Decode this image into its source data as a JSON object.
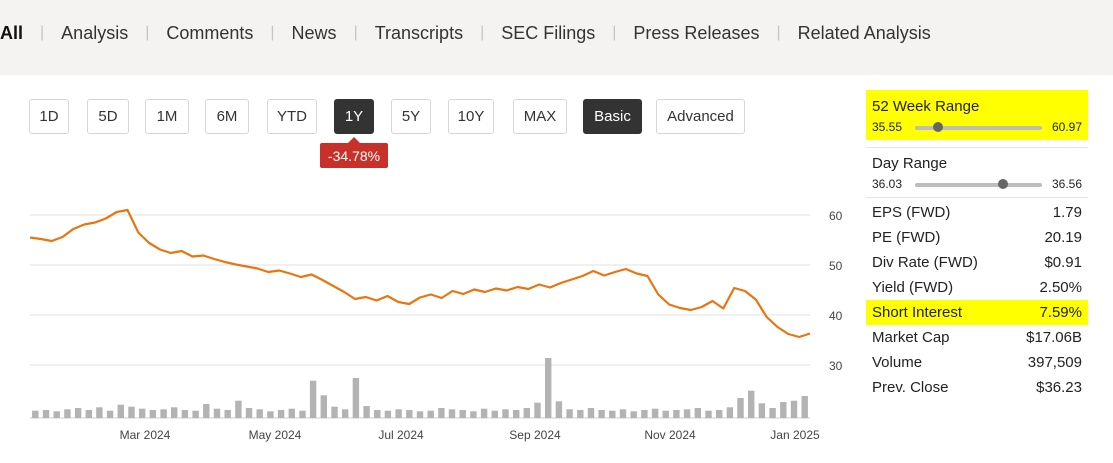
{
  "nav": {
    "tabs": [
      "All",
      "Analysis",
      "Comments",
      "News",
      "Transcripts",
      "SEC Filings",
      "Press Releases",
      "Related Analysis"
    ],
    "active": "All"
  },
  "range_buttons": [
    "1D",
    "5D",
    "1M",
    "6M",
    "YTD",
    "1Y",
    "5Y",
    "10Y",
    "MAX"
  ],
  "active_range": "1Y",
  "mode_buttons": [
    "Basic",
    "Advanced"
  ],
  "active_mode": "Basic",
  "change_pct": "-34.78%",
  "colors": {
    "line": "#e8750f",
    "badge": "#c8312a",
    "highlight": "#ffff00",
    "volume": "#b3b3b3"
  },
  "stats": {
    "week52": {
      "label": "52 Week Range",
      "low": "35.55",
      "high": "60.97",
      "position": 0.18
    },
    "day": {
      "label": "Day Range",
      "low": "36.03",
      "high": "36.56",
      "position": 0.69
    },
    "rows": [
      {
        "label": "EPS (FWD)",
        "value": "1.79"
      },
      {
        "label": "PE (FWD)",
        "value": "20.19"
      },
      {
        "label": "Div Rate (FWD)",
        "value": "$0.91"
      },
      {
        "label": "Yield (FWD)",
        "value": "2.50%"
      },
      {
        "label": "Short Interest",
        "value": "7.59%",
        "highlight": true
      },
      {
        "label": "Market Cap",
        "value": "$17.06B"
      },
      {
        "label": "Volume",
        "value": "397,509"
      },
      {
        "label": "Prev. Close",
        "value": "$36.23"
      }
    ]
  },
  "chart_data": {
    "type": "line",
    "x_ticks": [
      "Mar 2024",
      "May 2024",
      "Jul 2024",
      "Sep 2024",
      "Nov 2024",
      "Jan 2025"
    ],
    "y_ticks": [
      30,
      40,
      50,
      60
    ],
    "ylim": [
      27,
      67
    ],
    "grid": true,
    "price": [
      55.5,
      55.2,
      54.8,
      55.6,
      57.2,
      58.1,
      58.5,
      59.3,
      60.6,
      61.0,
      56.5,
      54.4,
      53.1,
      52.4,
      52.8,
      51.7,
      51.9,
      51.2,
      50.6,
      50.1,
      49.7,
      49.3,
      48.6,
      48.9,
      48.3,
      47.6,
      48.1,
      47.0,
      45.8,
      44.6,
      43.2,
      43.6,
      42.9,
      43.8,
      42.6,
      42.2,
      43.5,
      44.1,
      43.4,
      44.8,
      44.2,
      45.1,
      44.6,
      45.3,
      44.9,
      45.6,
      45.2,
      46.1,
      45.5,
      46.4,
      47.1,
      47.8,
      48.8,
      47.9,
      48.6,
      49.2,
      48.3,
      47.8,
      44.1,
      42.1,
      41.4,
      41.0,
      41.6,
      42.8,
      41.3,
      45.4,
      44.8,
      43.1,
      39.6,
      37.6,
      36.2,
      35.6,
      36.3
    ],
    "volume": [
      1.1,
      1.2,
      1.0,
      1.3,
      1.5,
      1.2,
      1.6,
      1.1,
      2.0,
      1.7,
      1.4,
      1.2,
      1.3,
      1.6,
      1.2,
      1.1,
      2.1,
      1.4,
      1.2,
      2.6,
      1.5,
      1.3,
      1.0,
      1.2,
      1.4,
      1.1,
      5.6,
      3.4,
      1.7,
      1.3,
      6.0,
      1.8,
      1.2,
      1.1,
      1.3,
      1.2,
      1.0,
      1.1,
      1.5,
      1.3,
      1.2,
      1.0,
      1.4,
      1.1,
      1.3,
      1.2,
      1.5,
      2.3,
      9.0,
      2.5,
      1.3,
      1.2,
      1.5,
      1.2,
      1.1,
      1.3,
      1.0,
      1.2,
      1.4,
      1.1,
      1.2,
      1.3,
      1.5,
      1.1,
      1.2,
      1.6,
      3.0,
      4.1,
      2.2,
      1.5,
      2.4,
      2.6,
      3.3
    ]
  }
}
